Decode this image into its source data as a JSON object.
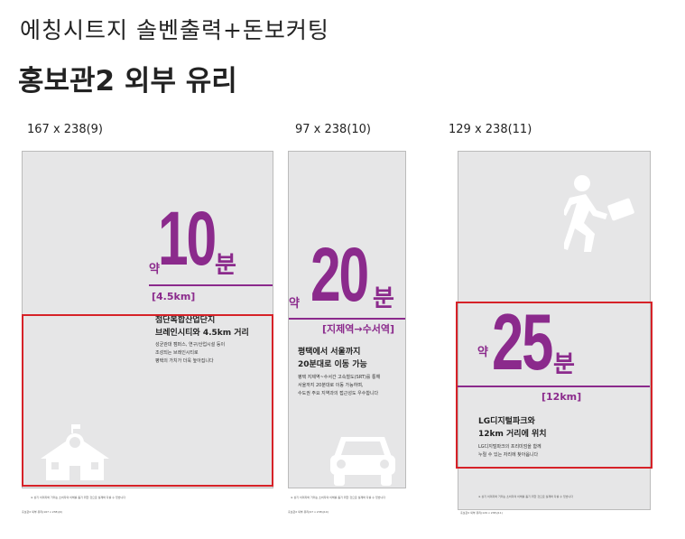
{
  "header": {
    "title": "에칭시트지 솔벤출력+돈보커팅",
    "subtitle": "홍보관2 외부 유리"
  },
  "panels": [
    {
      "size_label": "167 x 238(9)",
      "prefix": "약",
      "number": "10",
      "unit": "분",
      "distance": "[4.5km]",
      "headline": [
        "첨단복합산업단지",
        "브레인시티와 4.5km 거리"
      ],
      "body": [
        "성균관대 캠퍼스, 연구/산업시설 등이",
        "조성되는 브레인시티로",
        "평택의 가치가 더욱 높아집니다"
      ],
      "note": "※ 상기 이미지와 거리는 소비자의 이해를 돕기 위한 것으로 실제와 다를 수 있습니다",
      "footer": "홍보관2 외부 유리(167 x 238)(9)"
    },
    {
      "size_label": "97 x 238(10)",
      "prefix": "약",
      "number": "20",
      "unit": "분",
      "distance": "[지제역→수서역]",
      "headline": [
        "평택에서 서울까지",
        "20분대로 이동 가능"
      ],
      "body": [
        "평택 지제역~수서간 고속철도(SRT)를 통해",
        "서울까지 20분대로 이동 가능하며,",
        "수도권 주요 지역과의 접근성도 우수합니다"
      ],
      "note": "※ 상기 이미지와 거리는 소비자의 이해를 돕기 위한 것으로 실제와 다를 수 있습니다",
      "footer": "홍보관2 외부 유리(97 x 238)(10)"
    },
    {
      "size_label": "129 x 238(11)",
      "prefix": "약",
      "number": "25",
      "unit": "분",
      "distance": "[12km]",
      "headline": [
        "LG디지털파크와",
        "12km 거리에 위치"
      ],
      "body": [
        "LG디지털파크의 프리미엄을 함께",
        "누릴 수 있는 자리에 찾아옵니다"
      ],
      "note": "※ 상기 이미지와 거리는 소비자의 이해를 돕기 위한 것으로 실제와 다를 수 있습니다",
      "footer": "홍보관2 외부 유리(129 x 238)(11)"
    }
  ]
}
